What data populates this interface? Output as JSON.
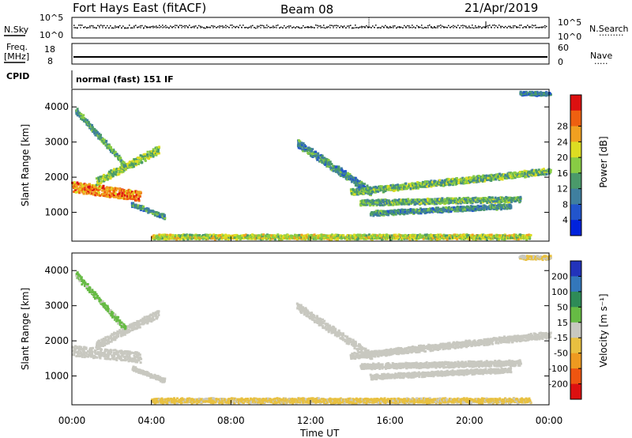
{
  "header": {
    "radar": "Fort Hays East (fitACF)",
    "beam": "Beam 08",
    "date": "21/Apr/2019"
  },
  "sky_panel": {
    "left_label": "N.Sky",
    "left_ticks": [
      "10^5",
      "10^0"
    ],
    "right_ticks": [
      "10^5",
      "10^0"
    ],
    "right_label": "N.Search",
    "right_marker": "·········"
  },
  "freq_panel": {
    "left_label_top": "Freq.",
    "left_label_bottom": "[MHz]",
    "left_ticks": [
      "18",
      "8"
    ],
    "right_ticks": [
      "60",
      "0"
    ],
    "right_label": "Nave",
    "right_marker": "·····"
  },
  "cpid": {
    "label": "CPID",
    "value": "normal (fast) 151 IF"
  },
  "chart_data": [
    {
      "type": "heatmap",
      "name": "power",
      "ylabel": "Slant Range [km]",
      "yticks": [
        1000,
        2000,
        3000,
        4000
      ],
      "ylim": [
        180,
        4500
      ],
      "xlim": [
        0,
        24
      ],
      "colorbar_label": "Power [dB]",
      "colorbar_ticks": [
        "4",
        "8",
        "12",
        "16",
        "20",
        "24",
        "28"
      ],
      "colorbar_colors": [
        "#0022dd",
        "#2255cc",
        "#3f7f9f",
        "#4a9a6a",
        "#88cc44",
        "#dddd22",
        "#f0a020",
        "#ee6010",
        "#dd1010"
      ],
      "features": [
        {
          "t0": 0.0,
          "t1": 3.4,
          "r0": 1750,
          "r1": 1500,
          "thick": 250,
          "value": 26
        },
        {
          "t0": 1.2,
          "t1": 4.3,
          "r0": 1900,
          "r1": 2800,
          "thick": 180,
          "value": 16
        },
        {
          "t0": 0.2,
          "t1": 2.6,
          "r0": 3900,
          "r1": 2400,
          "thick": 120,
          "value": 12
        },
        {
          "t0": 3.0,
          "t1": 4.6,
          "r0": 1250,
          "r1": 900,
          "thick": 90,
          "value": 10
        },
        {
          "t0": 4.0,
          "t1": 23.0,
          "r0": 330,
          "r1": 330,
          "thick": 100,
          "value": 18
        },
        {
          "t0": 11.3,
          "t1": 15.0,
          "r0": 3000,
          "r1": 1600,
          "thick": 180,
          "value": 10
        },
        {
          "t0": 14.0,
          "t1": 24.0,
          "r0": 1600,
          "r1": 2200,
          "thick": 140,
          "value": 14
        },
        {
          "t0": 14.5,
          "t1": 22.5,
          "r0": 1300,
          "r1": 1400,
          "thick": 120,
          "value": 13
        },
        {
          "t0": 15.0,
          "t1": 22.0,
          "r0": 1000,
          "r1": 1200,
          "thick": 100,
          "value": 10
        },
        {
          "t0": 22.5,
          "t1": 24.0,
          "r0": 4400,
          "r1": 4400,
          "thick": 80,
          "value": 8
        }
      ]
    },
    {
      "type": "heatmap",
      "name": "velocity",
      "ylabel": "Slant Range [km]",
      "yticks": [
        1000,
        2000,
        3000,
        4000
      ],
      "ylim": [
        180,
        4500
      ],
      "xlim": [
        0,
        24
      ],
      "colorbar_label": "Velocity [m s⁻¹]",
      "colorbar_ticks": [
        "200",
        "100",
        "50",
        "15",
        "-15",
        "-50",
        "-100",
        "-200"
      ],
      "colorbar_colors": [
        "#2233bb",
        "#3377bb",
        "#2e8b57",
        "#66bb44",
        "#c8c8c0",
        "#e8c040",
        "#ee9a20",
        "#ee5510",
        "#dd1010"
      ],
      "features": [
        {
          "t0": 0.0,
          "t1": 3.4,
          "r0": 1750,
          "r1": 1550,
          "thick": 250,
          "value": 0
        },
        {
          "t0": 1.2,
          "t1": 4.3,
          "r0": 1900,
          "r1": 2800,
          "thick": 180,
          "value": 0
        },
        {
          "t0": 0.2,
          "t1": 2.6,
          "r0": 3900,
          "r1": 2400,
          "thick": 120,
          "value": 40
        },
        {
          "t0": 3.0,
          "t1": 4.6,
          "r0": 1250,
          "r1": 900,
          "thick": 90,
          "value": 0
        },
        {
          "t0": 4.0,
          "t1": 23.0,
          "r0": 330,
          "r1": 330,
          "thick": 100,
          "value": -40
        },
        {
          "t0": 11.3,
          "t1": 15.0,
          "r0": 3000,
          "r1": 1600,
          "thick": 180,
          "value": 0
        },
        {
          "t0": 14.0,
          "t1": 24.0,
          "r0": 1600,
          "r1": 2200,
          "thick": 140,
          "value": 0
        },
        {
          "t0": 14.5,
          "t1": 22.5,
          "r0": 1300,
          "r1": 1400,
          "thick": 120,
          "value": 0
        },
        {
          "t0": 15.0,
          "t1": 22.0,
          "r0": 1000,
          "r1": 1200,
          "thick": 100,
          "value": 0
        },
        {
          "t0": 22.5,
          "t1": 24.0,
          "r0": 4400,
          "r1": 4400,
          "thick": 80,
          "value": -30
        }
      ]
    }
  ],
  "xaxis": {
    "ticks": [
      "00:00",
      "04:00",
      "08:00",
      "12:00",
      "16:00",
      "20:00",
      "00:00"
    ],
    "label": "Time UT"
  }
}
